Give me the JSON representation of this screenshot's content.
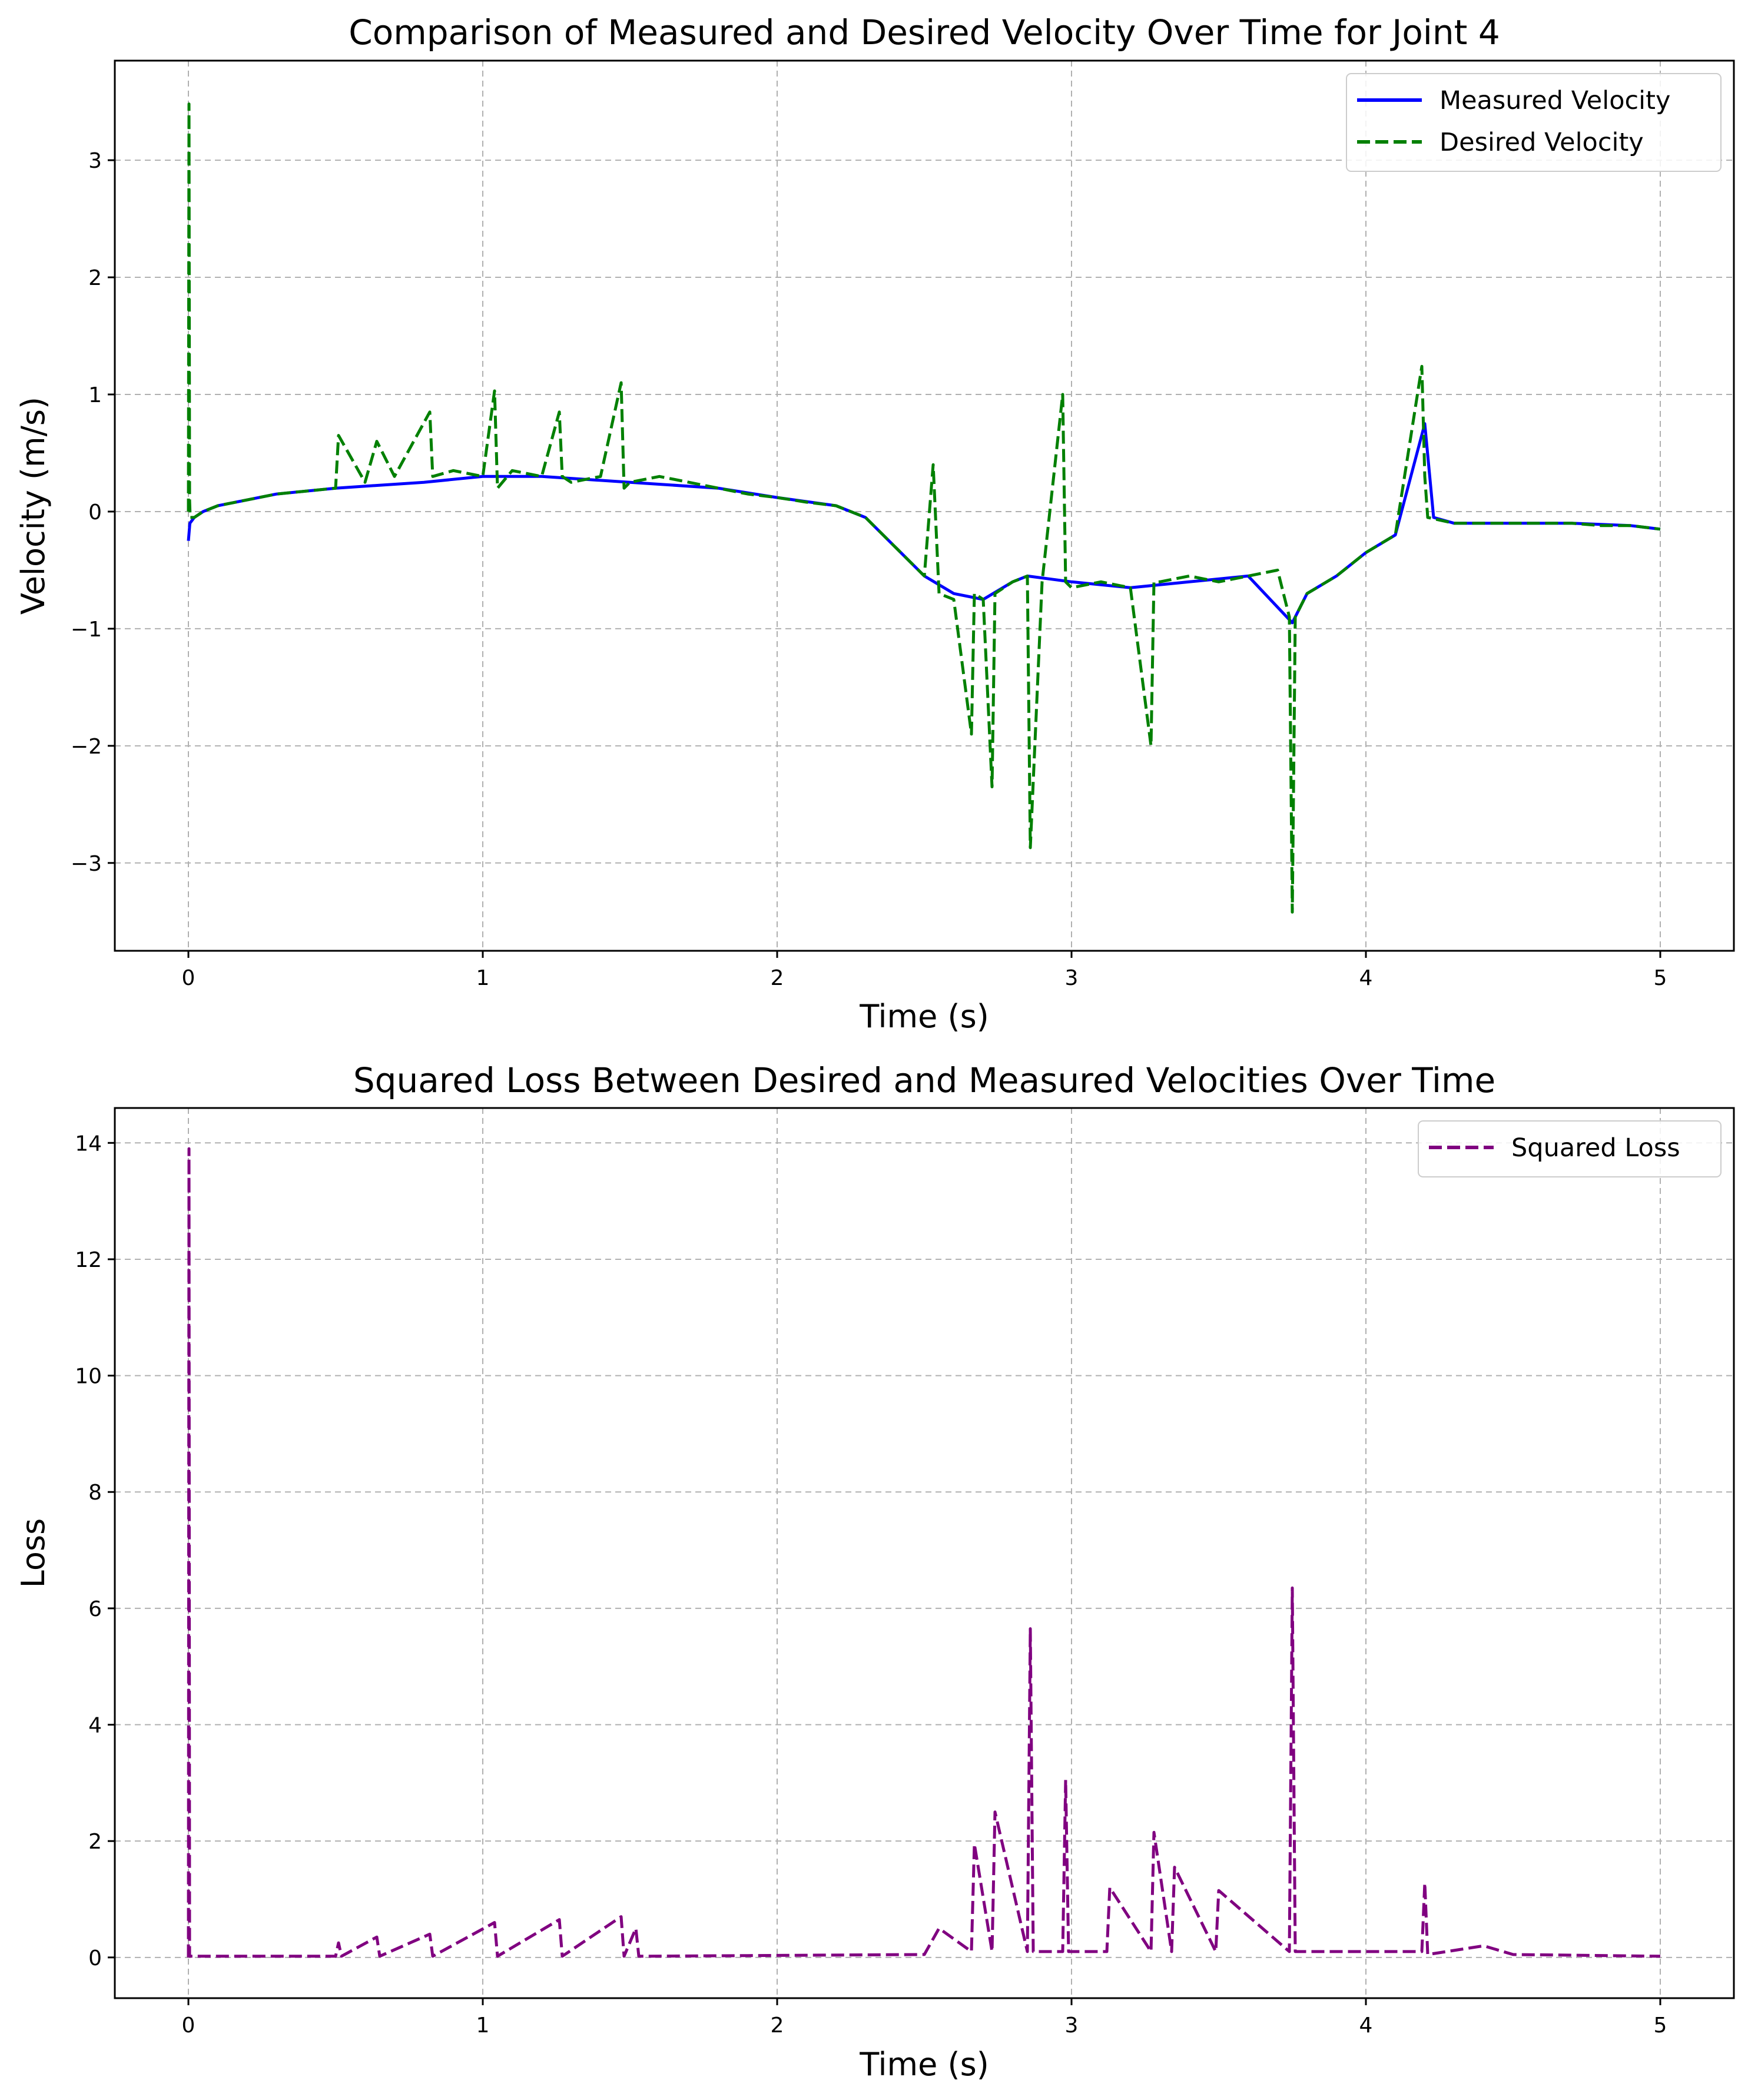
{
  "chart_data": [
    {
      "type": "line",
      "title": "Comparison of Measured and Desired Velocity Over Time for Joint 4",
      "xlabel": "Time (s)",
      "ylabel": "Velocity (m/s)",
      "xlim": [
        -0.25,
        5.25
      ],
      "ylim": [
        -3.75,
        3.85
      ],
      "xticks": [
        0,
        1,
        2,
        3,
        4,
        5
      ],
      "xtick_labels": [
        "0",
        "1",
        "2",
        "3",
        "4",
        "5"
      ],
      "yticks": [
        -3,
        -2,
        -1,
        0,
        1,
        2,
        3
      ],
      "ytick_labels": [
        "−3",
        "−2",
        "−1",
        "0",
        "1",
        "2",
        "3"
      ],
      "grid": true,
      "legend_position": "top-right",
      "series": [
        {
          "name": "Measured Velocity",
          "color": "#0000ff",
          "style": "solid",
          "x": [
            0,
            0.005,
            0.02,
            0.05,
            0.1,
            0.2,
            0.3,
            0.5,
            0.8,
            1.0,
            1.2,
            1.5,
            1.8,
            2.0,
            2.2,
            2.3,
            2.4,
            2.5,
            2.6,
            2.7,
            2.8,
            2.85,
            3.0,
            3.2,
            3.4,
            3.6,
            3.75,
            3.8,
            3.9,
            4.0,
            4.1,
            4.2,
            4.23,
            4.3,
            4.5,
            4.7,
            4.9,
            5.0
          ],
          "y": [
            -0.25,
            -0.1,
            -0.05,
            0.0,
            0.05,
            0.1,
            0.15,
            0.2,
            0.25,
            0.3,
            0.3,
            0.25,
            0.2,
            0.12,
            0.05,
            -0.05,
            -0.3,
            -0.55,
            -0.7,
            -0.75,
            -0.6,
            -0.55,
            -0.6,
            -0.65,
            -0.6,
            -0.55,
            -0.95,
            -0.7,
            -0.55,
            -0.35,
            -0.2,
            0.75,
            -0.05,
            -0.1,
            -0.1,
            -0.1,
            -0.12,
            -0.15
          ]
        },
        {
          "name": "Desired Velocity",
          "color": "#008000",
          "style": "dashed",
          "x": [
            0,
            0.002,
            0.004,
            0.006,
            0.02,
            0.05,
            0.1,
            0.2,
            0.3,
            0.5,
            0.51,
            0.6,
            0.64,
            0.7,
            0.82,
            0.83,
            0.9,
            1.0,
            1.04,
            1.05,
            1.1,
            1.2,
            1.26,
            1.27,
            1.3,
            1.4,
            1.47,
            1.48,
            1.5,
            1.6,
            1.7,
            1.8,
            1.9,
            2.0,
            2.1,
            2.2,
            2.3,
            2.4,
            2.5,
            2.53,
            2.55,
            2.6,
            2.66,
            2.67,
            2.7,
            2.73,
            2.74,
            2.8,
            2.85,
            2.86,
            2.9,
            2.97,
            2.98,
            3.0,
            3.1,
            3.2,
            3.27,
            3.28,
            3.3,
            3.4,
            3.5,
            3.6,
            3.7,
            3.74,
            3.75,
            3.76,
            3.8,
            3.9,
            4.0,
            4.1,
            4.19,
            4.2,
            4.21,
            4.3,
            4.4,
            4.5,
            4.6,
            4.7,
            4.8,
            4.9,
            5.0
          ],
          "y": [
            0,
            3.48,
            0.1,
            -0.05,
            -0.05,
            0.0,
            0.05,
            0.1,
            0.15,
            0.2,
            0.65,
            0.25,
            0.6,
            0.3,
            0.85,
            0.3,
            0.35,
            0.3,
            1.03,
            0.2,
            0.35,
            0.3,
            0.85,
            0.3,
            0.25,
            0.3,
            1.1,
            0.2,
            0.25,
            0.3,
            0.25,
            0.2,
            0.15,
            0.12,
            0.08,
            0.05,
            -0.05,
            -0.3,
            -0.55,
            0.4,
            -0.7,
            -0.75,
            -1.9,
            -0.7,
            -0.75,
            -2.35,
            -0.7,
            -0.6,
            -0.55,
            -2.87,
            -0.6,
            1.0,
            -0.6,
            -0.65,
            -0.6,
            -0.65,
            -2.0,
            -0.6,
            -0.6,
            -0.55,
            -0.6,
            -0.55,
            -0.5,
            -0.9,
            -3.42,
            -0.9,
            -0.7,
            -0.55,
            -0.35,
            -0.2,
            1.24,
            0.3,
            -0.05,
            -0.1,
            -0.1,
            -0.1,
            -0.1,
            -0.1,
            -0.12,
            -0.12,
            -0.15
          ]
        }
      ]
    },
    {
      "type": "line",
      "title": "Squared Loss Between Desired and Measured Velocities Over Time",
      "xlabel": "Time (s)",
      "ylabel": "Loss",
      "xlim": [
        -0.25,
        5.25
      ],
      "ylim": [
        -0.7,
        14.6
      ],
      "xticks": [
        0,
        1,
        2,
        3,
        4,
        5
      ],
      "xtick_labels": [
        "0",
        "1",
        "2",
        "3",
        "4",
        "5"
      ],
      "yticks": [
        0,
        2,
        4,
        6,
        8,
        10,
        12,
        14
      ],
      "ytick_labels": [
        "0",
        "2",
        "4",
        "6",
        "8",
        "10",
        "12",
        "14"
      ],
      "grid": true,
      "legend_position": "top-right",
      "series": [
        {
          "name": "Squared Loss",
          "color": "#800080",
          "style": "dashed",
          "x": [
            0,
            0.002,
            0.004,
            0.5,
            0.51,
            0.52,
            0.64,
            0.65,
            0.82,
            0.83,
            1.04,
            1.05,
            1.26,
            1.27,
            1.47,
            1.48,
            1.52,
            1.53,
            2.5,
            2.55,
            2.66,
            2.67,
            2.73,
            2.74,
            2.85,
            2.86,
            2.87,
            2.97,
            2.98,
            2.99,
            3.12,
            3.13,
            3.27,
            3.28,
            3.34,
            3.35,
            3.49,
            3.5,
            3.74,
            3.75,
            3.76,
            4.19,
            4.2,
            4.21,
            4.4,
            4.5,
            5.0
          ],
          "y": [
            0,
            13.9,
            0.02,
            0.02,
            0.25,
            0.02,
            0.35,
            0.02,
            0.4,
            0.02,
            0.6,
            0.02,
            0.65,
            0.02,
            0.7,
            0.02,
            0.5,
            0.02,
            0.05,
            0.5,
            0.1,
            1.95,
            0.1,
            2.5,
            0.1,
            5.65,
            0.1,
            0.1,
            3.05,
            0.1,
            0.1,
            1.2,
            0.1,
            2.15,
            0.1,
            1.55,
            0.1,
            1.15,
            0.1,
            6.35,
            0.1,
            0.1,
            1.28,
            0.05,
            0.2,
            0.05,
            0.02
          ]
        }
      ]
    }
  ]
}
